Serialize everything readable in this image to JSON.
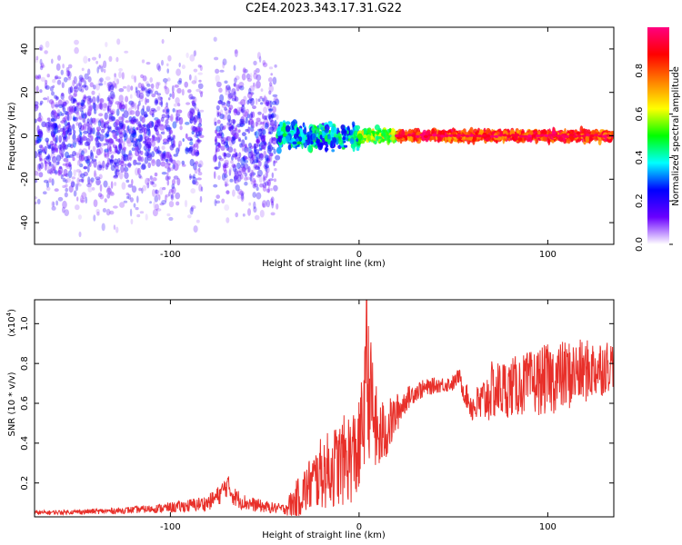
{
  "figure_title": "C2E4.2023.343.17.31.G22",
  "chart_data": [
    {
      "type": "heatmap",
      "xlabel": "Height of straight line (km)",
      "ylabel": "Frequency (Hz)",
      "xlim": [
        -172,
        135
      ],
      "ylim": [
        -50,
        50
      ],
      "x_ticks": [
        -100,
        0,
        100
      ],
      "y_ticks": [
        -40,
        -20,
        0,
        20,
        40
      ],
      "colorbar": {
        "label": "Normalized spectral amplitude",
        "range": [
          0.0,
          1.0
        ],
        "ticks": [
          0.0,
          0.2,
          0.4,
          0.6,
          0.8
        ],
        "colors": [
          "#ffffff",
          "#6a00ff",
          "#0000ff",
          "#00ffff",
          "#00ff00",
          "#ffff00",
          "#ff8000",
          "#ff0000",
          "#ff0080"
        ]
      },
      "description_regions": [
        {
          "x_range": [
            -172,
            -43
          ],
          "freq_spread": 50,
          "amplitude": [
            0.05,
            0.3
          ]
        },
        {
          "x_range": [
            -43,
            0
          ],
          "freq_spread": 8,
          "amplitude": [
            0.2,
            0.5
          ]
        },
        {
          "x_range": [
            0,
            20
          ],
          "freq_spread": 4,
          "amplitude": [
            0.4,
            0.7
          ]
        },
        {
          "x_range": [
            20,
            135
          ],
          "freq_spread": 3,
          "amplitude": [
            0.7,
            1.0
          ]
        }
      ],
      "colors": {
        "frame": "#000000",
        "gap": "#ffffff"
      }
    },
    {
      "type": "line",
      "xlabel": "Height of straight line (km)",
      "ylabel": "SNR (10 * v/v)",
      "scale_label": "(x10^4)",
      "xlim": [
        -172,
        135
      ],
      "ylim": [
        0.03,
        1.12
      ],
      "x_ticks": [
        -100,
        0,
        100
      ],
      "y_ticks": [
        0.2,
        0.4,
        0.6,
        0.8,
        1.0
      ],
      "series": [
        {
          "color": "#e8302a",
          "x": [
            -172,
            -150,
            -130,
            -110,
            -95,
            -80,
            -74,
            -70,
            -66,
            -60,
            -50,
            -40,
            -35,
            -30,
            -25,
            -20,
            -15,
            -10,
            -5,
            0,
            3,
            5,
            10,
            15,
            20,
            25,
            30,
            40,
            50,
            53,
            55,
            60,
            65,
            70,
            80,
            90,
            100,
            110,
            120,
            128,
            135
          ],
          "y": [
            0.05,
            0.055,
            0.06,
            0.07,
            0.08,
            0.1,
            0.14,
            0.19,
            0.13,
            0.1,
            0.08,
            0.07,
            0.1,
            0.15,
            0.2,
            0.25,
            0.27,
            0.3,
            0.33,
            0.36,
            0.6,
            0.68,
            0.42,
            0.47,
            0.55,
            0.62,
            0.66,
            0.69,
            0.7,
            0.74,
            0.67,
            0.58,
            0.6,
            0.66,
            0.68,
            0.7,
            0.72,
            0.74,
            0.76,
            0.78,
            0.8
          ],
          "noise": [
            0.01,
            0.012,
            0.015,
            0.02,
            0.03,
            0.04,
            0.05,
            0.06,
            0.05,
            0.04,
            0.03,
            0.025,
            0.08,
            0.12,
            0.15,
            0.18,
            0.2,
            0.22,
            0.24,
            0.25,
            0.3,
            0.35,
            0.2,
            0.15,
            0.1,
            0.06,
            0.05,
            0.04,
            0.04,
            0.04,
            0.05,
            0.08,
            0.12,
            0.15,
            0.15,
            0.16,
            0.18,
            0.18,
            0.16,
            0.15,
            0.12
          ]
        }
      ],
      "spike": {
        "x": 4,
        "y": 1.12
      }
    }
  ]
}
